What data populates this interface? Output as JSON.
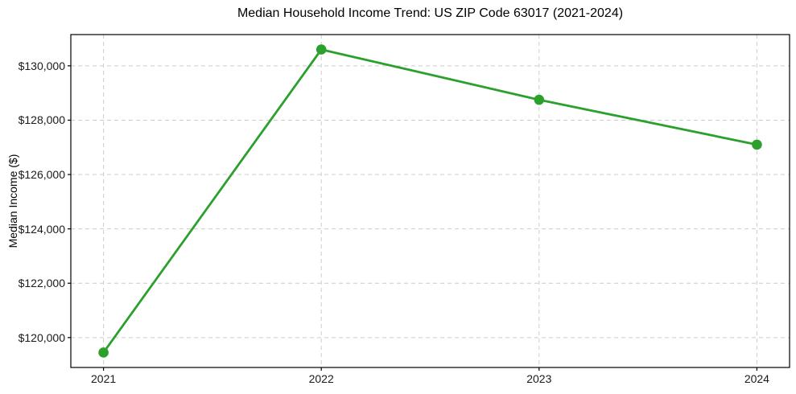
{
  "chart_data": {
    "type": "line",
    "title": "Median Household Income Trend: US ZIP Code 63017 (2021-2024)",
    "xlabel": "",
    "ylabel": "Median Income ($)",
    "categories": [
      "2021",
      "2022",
      "2023",
      "2024"
    ],
    "x": [
      2021,
      2022,
      2023,
      2024
    ],
    "series": [
      {
        "name": "Median Household Income",
        "values": [
          119450,
          130600,
          128750,
          127100
        ]
      }
    ],
    "values": [
      119450,
      130600,
      128750,
      127100
    ],
    "xlim": [
      2020.85,
      2024.15
    ],
    "ylim": [
      118900,
      131150
    ],
    "yticks": [
      120000,
      122000,
      124000,
      126000,
      128000,
      130000
    ],
    "ytick_labels": [
      "$120,000",
      "$122,000",
      "$124,000",
      "$126,000",
      "$128,000",
      "$130,000"
    ],
    "xtick_labels": [
      "2021",
      "2022",
      "2023",
      "2024"
    ],
    "grid": true,
    "grid_style": "dashed",
    "grid_color": "#cccccc",
    "line_color": "#2ca02c",
    "marker": "circle",
    "marker_radius": 6.3,
    "line_width": 2.8,
    "legend_position": "none"
  }
}
